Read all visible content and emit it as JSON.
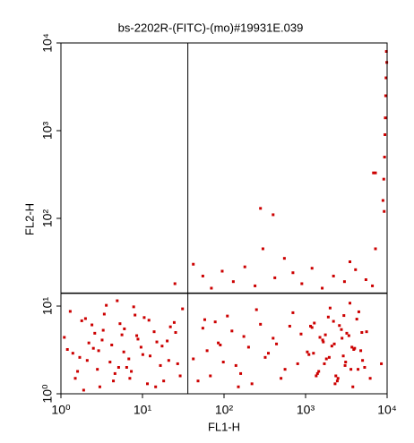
{
  "chart_data": {
    "type": "scatter",
    "title": "bs-2202R-(FITC)-(mo)#19931E.039",
    "x_label": "FL1-H",
    "y_label": "FL2-H",
    "log_x": true,
    "log_y": true,
    "color": "#cc0000",
    "xlim": [
      1,
      10000
    ],
    "ylim": [
      1,
      10000
    ],
    "xticks": [
      {
        "value": 1,
        "label": "10⁰"
      },
      {
        "value": 10,
        "label": "10¹"
      },
      {
        "value": 100,
        "label": "10²"
      },
      {
        "value": 1000,
        "label": "10³"
      },
      {
        "value": 10000,
        "label": "10⁴"
      }
    ],
    "yticks": [
      {
        "value": 1,
        "label": "10⁰"
      },
      {
        "value": 10,
        "label": "10¹"
      },
      {
        "value": 100,
        "label": "10²"
      },
      {
        "value": 1000,
        "label": "10³"
      },
      {
        "value": 10000,
        "label": "10⁴"
      }
    ],
    "quadrant": {
      "x": 36,
      "y": 14
    },
    "x": [
      1.2,
      1.5,
      1.8,
      2.1,
      2.6,
      3.0,
      3.4,
      4.2,
      5.1,
      6.0,
      7.3,
      8.8,
      10.5,
      12.4,
      15.0,
      18.2,
      22.0,
      27.0,
      31.0,
      1.1,
      1.4,
      1.9,
      2.4,
      2.9,
      3.6,
      4.6,
      5.6,
      6.8,
      8.1,
      9.6,
      11.5,
      13.9,
      16.6,
      20.1,
      24.5,
      29.0,
      1.3,
      1.7,
      2.2,
      2.8,
      3.3,
      4.0,
      4.9,
      5.9,
      7.0,
      8.5,
      10.1,
      12.0,
      14.5,
      17.4,
      21.0,
      25.5,
      1.6,
      2.0,
      2.5,
      3.2,
      4.4,
      5.3,
      6.4,
      7.8,
      42,
      55,
      68,
      85,
      110,
      140,
      175,
      220,
      280,
      350,
      440,
      560,
      700,
      880,
      48,
      62,
      78,
      98,
      125,
      160,
      200,
      250,
      320,
      400,
      500,
      640,
      800,
      58,
      90,
      150,
      1050,
      1200,
      1350,
      1500,
      1700,
      1900,
      2100,
      2300,
      2600,
      2900,
      3200,
      3600,
      4000,
      4500,
      5000,
      5600,
      6200,
      1100,
      1280,
      1450,
      1620,
      1800,
      2000,
      2250,
      2450,
      2750,
      3050,
      3400,
      3800,
      4250,
      4750,
      5300,
      1150,
      1400,
      1650,
      1950,
      2200,
      2500,
      2800,
      3100,
      3500,
      3900,
      4400,
      4900,
      1250,
      1750,
      2350,
      2950,
      3700,
      8500,
      25,
      42,
      55,
      70,
      95,
      130,
      180,
      240,
      300,
      420,
      550,
      700,
      900,
      1200,
      1600,
      2200,
      3000,
      4100,
      5500,
      6600,
      7200,
      3500,
      280,
      400,
      9800,
      9700,
      9600,
      9500,
      9400,
      9300,
      9100,
      8900,
      7200,
      6800,
      9900,
      9200
    ],
    "values": [
      3.2,
      1.5,
      6.8,
      2.4,
      4.9,
      1.2,
      8.1,
      3.6,
      2.0,
      5.5,
      1.8,
      4.2,
      7.4,
      2.7,
      3.9,
      1.4,
      5.8,
      2.2,
      9.3,
      4.4,
      2.9,
      1.1,
      6.1,
      3.1,
      10.2,
      1.7,
      4.7,
      2.5,
      7.9,
      3.4,
      1.3,
      5.1,
      2.1,
      4.0,
      6.5,
      1.6,
      8.7,
      2.6,
      3.8,
      1.9,
      5.3,
      2.3,
      11.5,
      3.0,
      1.5,
      4.6,
      2.8,
      6.9,
      1.2,
      3.5,
      2.4,
      5.0,
      1.8,
      7.2,
      3.3,
      4.1,
      1.4,
      6.3,
      2.0,
      9.8,
      2.5,
      5.6,
      1.6,
      3.8,
      7.7,
      2.1,
      4.5,
      1.3,
      6.2,
      2.9,
      3.7,
      1.9,
      8.4,
      4.8,
      1.4,
      3.1,
      6.6,
      2.3,
      5.2,
      1.7,
      3.4,
      9.1,
      2.6,
      4.3,
      1.5,
      5.9,
      2.2,
      7.0,
      3.6,
      1.2,
      3.0,
      5.7,
      1.6,
      4.4,
      2.2,
      7.5,
      3.5,
      1.3,
      6.0,
      2.7,
      4.9,
      1.9,
      3.3,
      8.6,
      2.4,
      5.1,
      1.5,
      2.8,
      6.4,
      1.8,
      4.1,
      2.5,
      9.5,
      3.7,
      1.4,
      5.4,
      2.1,
      4.6,
      1.2,
      7.1,
      3.1,
      2.0,
      5.9,
      1.7,
      3.9,
      2.6,
      6.7,
      1.5,
      4.3,
      2.3,
      10.8,
      3.2,
      1.9,
      5.0,
      2.9,
      4.7,
      1.6,
      7.8,
      3.4,
      2.2,
      18,
      30,
      22,
      16,
      25,
      19,
      28,
      17,
      45,
      21,
      35,
      24,
      18,
      27,
      16,
      22,
      19,
      26,
      20,
      17,
      45,
      32,
      130,
      110,
      8000,
      4000,
      2500,
      1400,
      900,
      500,
      280,
      160,
      330,
      330,
      6000,
      120
    ]
  }
}
